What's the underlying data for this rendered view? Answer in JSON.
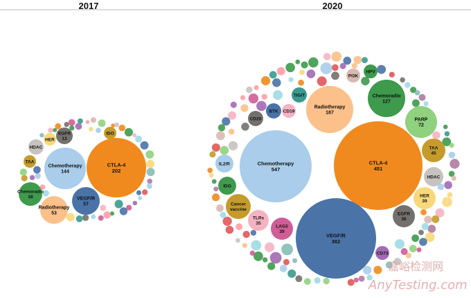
{
  "chart_data": [
    {
      "type": "bubble",
      "title": "2017",
      "bubbles": [
        {
          "name": "CTLA-4",
          "value": 202,
          "color": "#f08a1e"
        },
        {
          "name": "Chemotherapy",
          "value": 144,
          "color": "#a9cdea"
        },
        {
          "name": "VEGF/R",
          "value": 57,
          "color": "#4a73a8"
        },
        {
          "name": "Radiotherapy",
          "value": 53,
          "color": "#fcc08a"
        },
        {
          "name": "Chemoradio",
          "value": 38,
          "color": "#3e9a4c"
        },
        {
          "name": "EGFR",
          "value": 13,
          "color": "#74706d"
        },
        {
          "name": "HER",
          "color": "#f7d87a"
        },
        {
          "name": "HDAC",
          "color": "#c6c2c0"
        },
        {
          "name": "TAA",
          "color": "#c59b2b"
        },
        {
          "name": "IDO",
          "color": "#c59b2b"
        }
      ]
    },
    {
      "type": "bubble",
      "title": "2020",
      "bubbles": [
        {
          "name": "Chemotherapy",
          "value": 547,
          "color": "#a9cdea"
        },
        {
          "name": "CTLA-4",
          "value": 451,
          "color": "#f08a1e"
        },
        {
          "name": "VEGF/R",
          "value": 382,
          "color": "#4a73a8"
        },
        {
          "name": "Radiotherapy",
          "value": 187,
          "color": "#fcc08a"
        },
        {
          "name": "Chemoradio",
          "value": 127,
          "color": "#3e9a4c"
        },
        {
          "name": "PARP",
          "value": 72,
          "color": "#8fd17e"
        },
        {
          "name": "TAA",
          "value": 45,
          "color": "#c59b2b"
        },
        {
          "name": "HER",
          "value": 39,
          "color": "#f7d87a"
        },
        {
          "name": "LAG3",
          "value": 39,
          "color": "#cf5d96"
        },
        {
          "name": "EGFR",
          "value": 36,
          "color": "#74706d"
        },
        {
          "name": "TLRs",
          "value": 35,
          "color": "#f5b2c2"
        },
        {
          "name": "HDAC",
          "color": "#c6c2c0"
        },
        {
          "name": "Cancer vaccine",
          "color": "#c59b2b"
        },
        {
          "name": "IDO",
          "color": "#3e9a4c"
        },
        {
          "name": "IL2/R",
          "color": "#a9cdea"
        },
        {
          "name": "CD20",
          "color": "#74706d"
        },
        {
          "name": "BTK",
          "color": "#4a73a8"
        },
        {
          "name": "CD19",
          "color": "#f5b2c2"
        },
        {
          "name": "TIGIT",
          "color": "#3a9a8e"
        },
        {
          "name": "PI3K",
          "color": "#d9b9b0"
        },
        {
          "name": "HPV",
          "color": "#3e9a4c"
        },
        {
          "name": "CD73",
          "color": "#a26ab3"
        }
      ]
    }
  ],
  "watermark": {
    "logo_text": "嘉峪检测网",
    "url_text": "AnyTesting.com"
  }
}
